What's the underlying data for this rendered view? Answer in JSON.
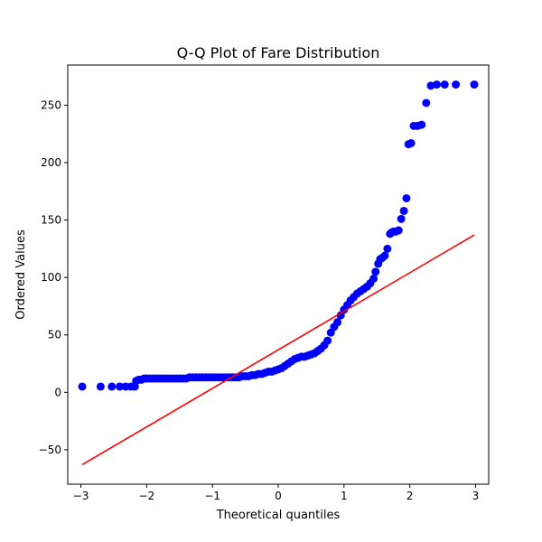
{
  "chart_data": {
    "type": "scatter",
    "title": "Q-Q Plot of Fare Distribution",
    "xlabel": "Theoretical quantiles",
    "ylabel": "Ordered Values",
    "xlim": [
      -3.2,
      3.2
    ],
    "ylim": [
      -80,
      285
    ],
    "xticks": [
      -3,
      -2,
      -1,
      0,
      1,
      2,
      3
    ],
    "yticks": [
      -50,
      0,
      50,
      100,
      150,
      200,
      250
    ],
    "grid": false,
    "marker_color": "#0000ff",
    "line_color": "#ff0000",
    "fit_line": {
      "x": [
        -2.98,
        2.98
      ],
      "y": [
        -63,
        137
      ]
    },
    "points": {
      "x": [
        -2.98,
        -2.7,
        -2.53,
        -2.41,
        -2.32,
        -2.24,
        -2.18,
        -2.16,
        -2.12,
        -2.08,
        -2.04,
        -2.0,
        -1.95,
        -1.9,
        -1.85,
        -1.8,
        -1.75,
        -1.7,
        -1.65,
        -1.6,
        -1.55,
        -1.5,
        -1.45,
        -1.4,
        -1.35,
        -1.3,
        -1.25,
        -1.2,
        -1.15,
        -1.1,
        -1.05,
        -1.0,
        -0.95,
        -0.9,
        -0.85,
        -0.8,
        -0.75,
        -0.7,
        -0.65,
        -0.6,
        -0.55,
        -0.5,
        -0.45,
        -0.4,
        -0.35,
        -0.3,
        -0.25,
        -0.2,
        -0.15,
        -0.1,
        -0.05,
        0.0,
        0.05,
        0.1,
        0.15,
        0.2,
        0.25,
        0.3,
        0.35,
        0.4,
        0.45,
        0.5,
        0.55,
        0.6,
        0.65,
        0.7,
        0.75,
        0.8,
        0.85,
        0.9,
        0.95,
        1.0,
        1.05,
        1.1,
        1.15,
        1.2,
        1.25,
        1.3,
        1.35,
        1.4,
        1.45,
        1.48,
        1.52,
        1.55,
        1.58,
        1.62,
        1.66,
        1.7,
        1.72,
        1.75,
        1.79,
        1.83,
        1.87,
        1.91,
        1.95,
        1.98,
        2.02,
        2.06,
        2.12,
        2.18,
        2.25,
        2.32,
        2.41,
        2.53,
        2.7,
        2.98
      ],
      "y": [
        5,
        5,
        5,
        5,
        5,
        5,
        5,
        10,
        11,
        11,
        12,
        12,
        12,
        12,
        12,
        12,
        12,
        12,
        12,
        12,
        12,
        12,
        12,
        12,
        13,
        13,
        13,
        13,
        13,
        13,
        13,
        13,
        13,
        13,
        13,
        13,
        13,
        13,
        13,
        13,
        14,
        14,
        14,
        15,
        15,
        16,
        16,
        17,
        18,
        18,
        19,
        20,
        21,
        23,
        25,
        27,
        29,
        30,
        31,
        31,
        32,
        33,
        34,
        36,
        38,
        41,
        45,
        52,
        57,
        61,
        67,
        72,
        76,
        80,
        83,
        86,
        88,
        90,
        92,
        95,
        99,
        105,
        112,
        116,
        117,
        119,
        125,
        138,
        139,
        140,
        140,
        141,
        151,
        158,
        169,
        216,
        217,
        232,
        232,
        233,
        252,
        267,
        268,
        268,
        268,
        268
      ]
    }
  }
}
